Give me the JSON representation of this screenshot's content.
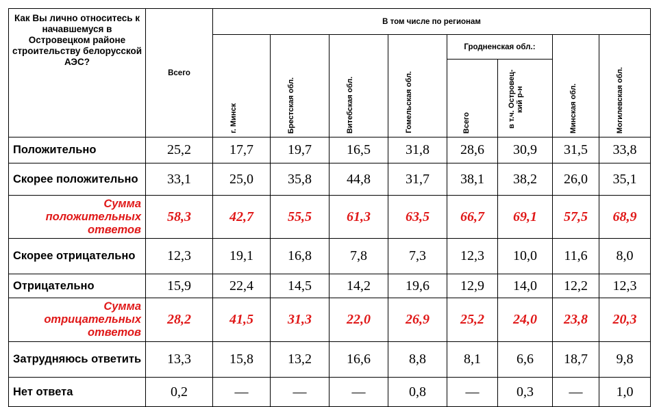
{
  "header": {
    "question": "Как Вы лично относитесь к начавшемуся в Островецком районе строительству белорусской АЭС?",
    "total": "Всего",
    "regions_group": "В том числе по регионам",
    "minsk_city": "г. Минск",
    "brest": "Брестская обл.",
    "vitebsk": "Витебская обл.",
    "gomel": "Гомельская обл.",
    "grodno_group": "Гродненская обл.:",
    "grodno_total": "Всего",
    "grodno_ostrovets": "в т.ч. Островец-кий р-н",
    "minsk_region": "Минская обл.",
    "mogilev": "Могилевская обл."
  },
  "rows": [
    {
      "label": "Положительно",
      "values": [
        "25,2",
        "17,7",
        "19,7",
        "16,5",
        "31,8",
        "28,6",
        "30,9",
        "31,5",
        "33,8"
      ]
    },
    {
      "label": "Скорее положительно",
      "values": [
        "33,1",
        "25,0",
        "35,8",
        "44,8",
        "31,7",
        "38,1",
        "38,2",
        "26,0",
        "35,1"
      ]
    },
    {
      "label": "Сумма положительных ответов",
      "values": [
        "58,3",
        "42,7",
        "55,5",
        "61,3",
        "63,5",
        "66,7",
        "69,1",
        "57,5",
        "68,9"
      ]
    },
    {
      "label": "Скорее отрицательно",
      "values": [
        "12,3",
        "19,1",
        "16,8",
        "7,8",
        "7,3",
        "12,3",
        "10,0",
        "11,6",
        "8,0"
      ]
    },
    {
      "label": "Отрицательно",
      "values": [
        "15,9",
        "22,4",
        "14,5",
        "14,2",
        "19,6",
        "12,9",
        "14,0",
        "12,2",
        "12,3"
      ]
    },
    {
      "label": "Сумма отрицательных ответов",
      "values": [
        "28,2",
        "41,5",
        "31,3",
        "22,0",
        "26,9",
        "25,2",
        "24,0",
        "23,8",
        "20,3"
      ]
    },
    {
      "label": "Затрудняюсь ответить",
      "values": [
        "13,3",
        "15,8",
        "13,2",
        "16,6",
        "8,8",
        "8,1",
        "6,6",
        "18,7",
        "9,8"
      ]
    },
    {
      "label": "Нет ответа",
      "values": [
        "0,2",
        "—",
        "—",
        "—",
        "0,8",
        "—",
        "0,3",
        "—",
        "1,0"
      ]
    }
  ],
  "colors": {
    "sum_rows": "#e01818",
    "text": "#000000"
  }
}
